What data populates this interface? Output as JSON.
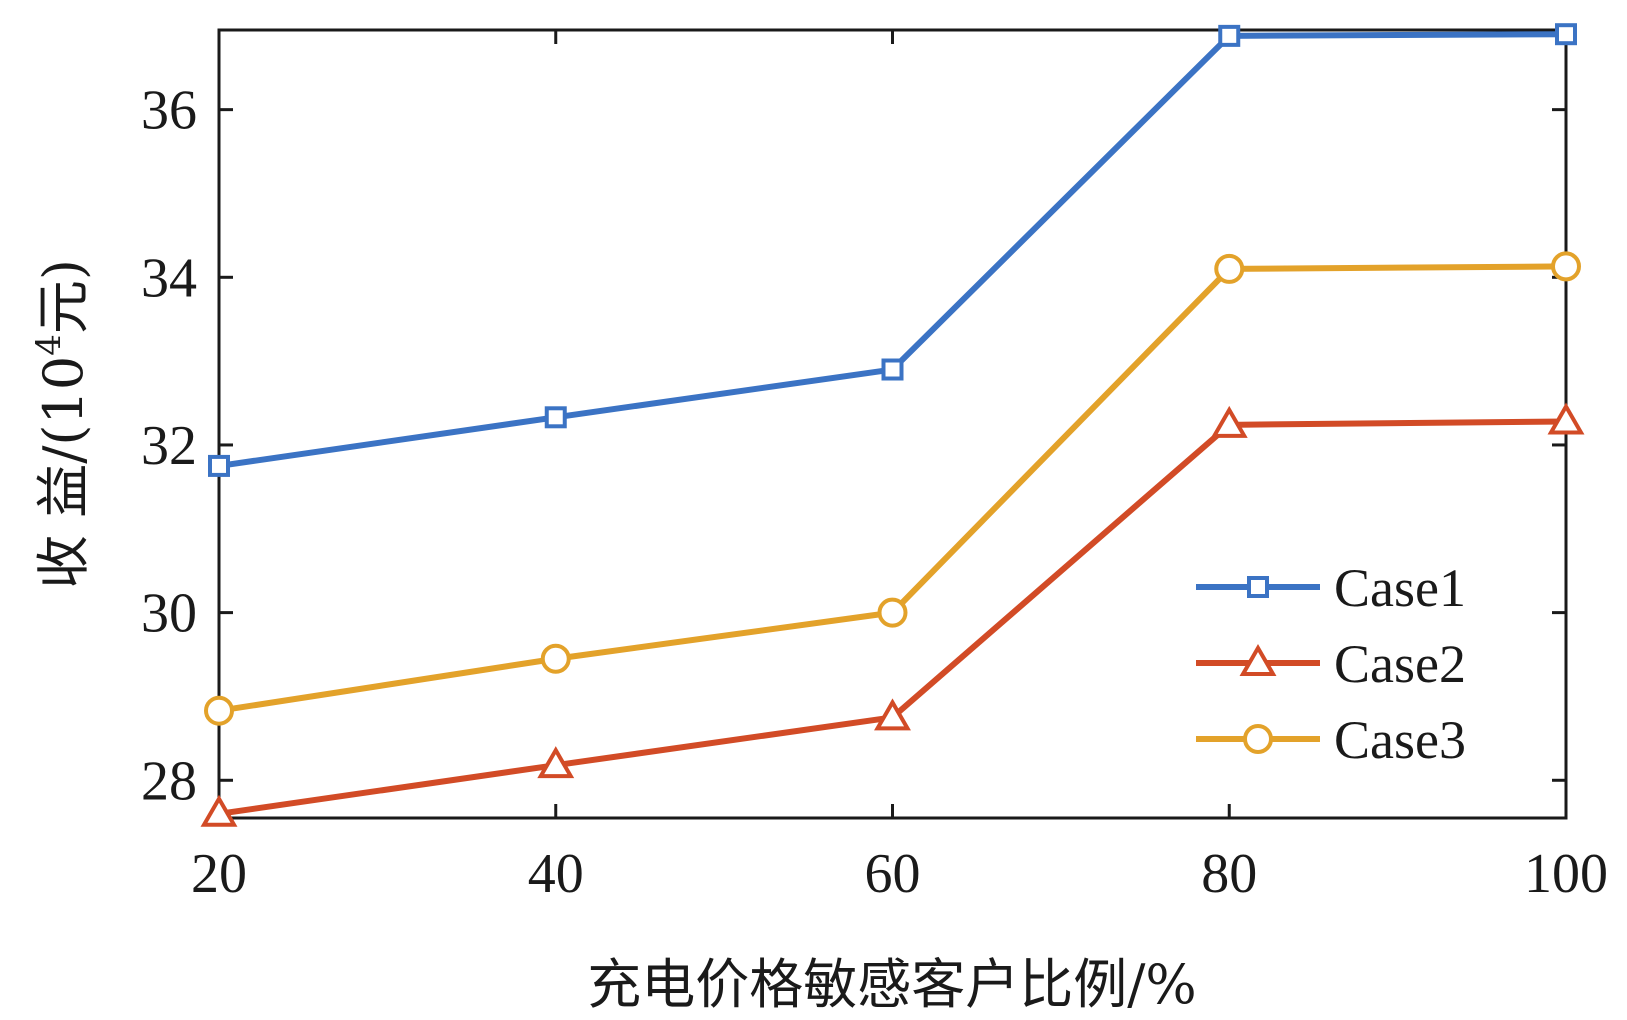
{
  "chart_data": {
    "type": "line",
    "title": "",
    "xlabel": "充电价格敏感客户比例/%",
    "ylabel_prefix": "收 益/(10",
    "ylabel_sup": "4",
    "ylabel_suffix": "元)",
    "x": [
      20,
      40,
      60,
      80,
      100
    ],
    "xlim": [
      20,
      100
    ],
    "ylim": [
      27.55,
      36.95
    ],
    "xticks": [
      20,
      40,
      60,
      80,
      100
    ],
    "yticks": [
      28,
      30,
      32,
      34,
      36
    ],
    "grid": false,
    "legend_position": "lower-right",
    "series": [
      {
        "name": "Case1",
        "values": [
          31.75,
          32.33,
          32.9,
          36.88,
          36.9
        ],
        "color": "#3b73c4",
        "marker": "square"
      },
      {
        "name": "Case2",
        "values": [
          27.6,
          28.18,
          28.75,
          32.24,
          32.28
        ],
        "color": "#d24b26",
        "marker": "triangle"
      },
      {
        "name": "Case3",
        "values": [
          28.83,
          29.45,
          30.0,
          34.1,
          34.13
        ],
        "color": "#e3a22a",
        "marker": "circle"
      }
    ]
  }
}
